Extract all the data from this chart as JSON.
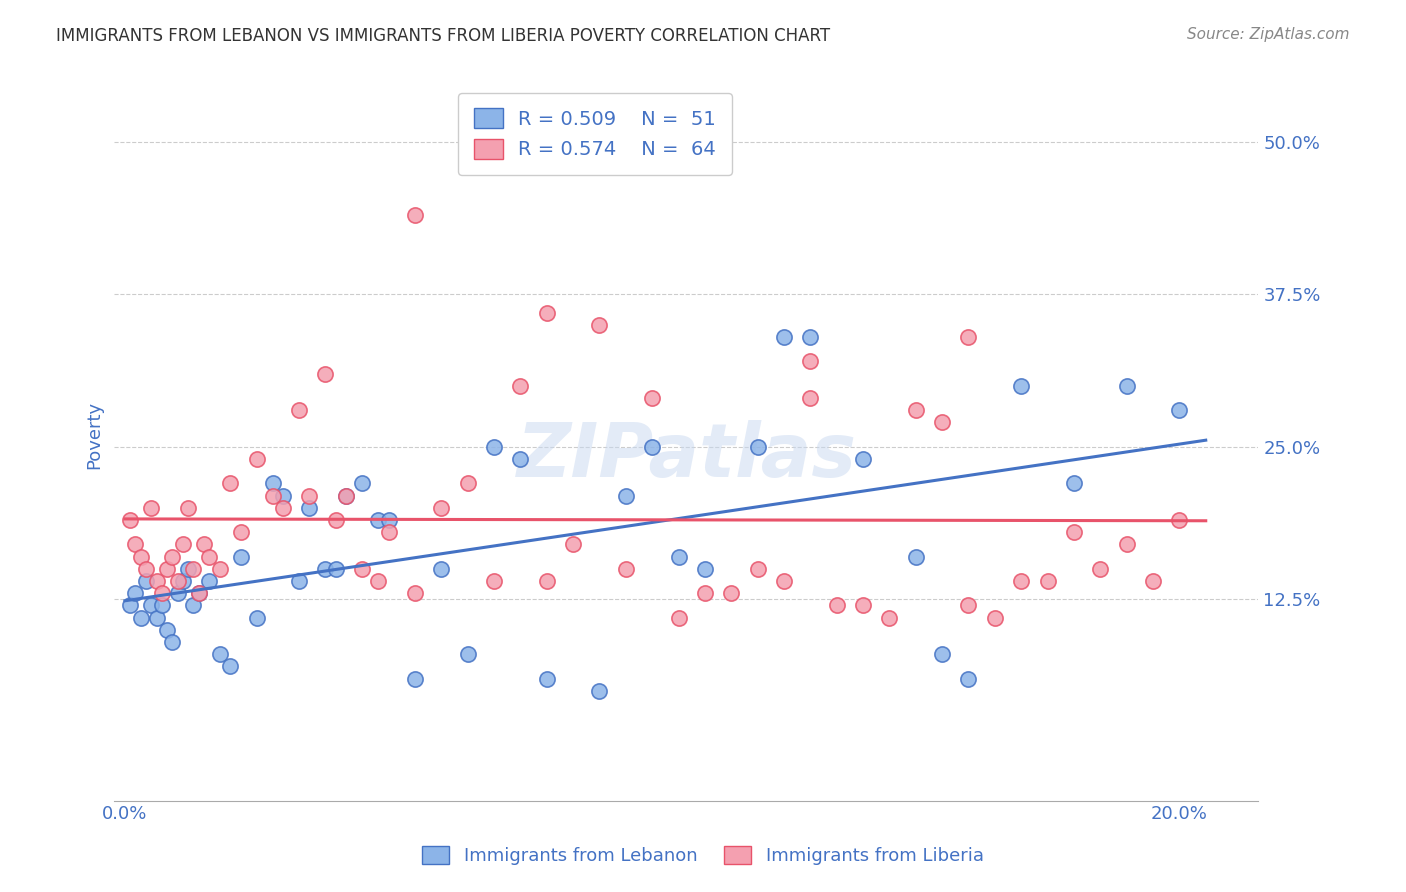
{
  "title": "IMMIGRANTS FROM LEBANON VS IMMIGRANTS FROM LIBERIA POVERTY CORRELATION CHART",
  "source": "Source: ZipAtlas.com",
  "ylabel": "Poverty",
  "xlim": [
    -0.002,
    0.215
  ],
  "ylim": [
    -0.04,
    0.56
  ],
  "legend_r1": "R = 0.509",
  "legend_n1": "N =  51",
  "legend_r2": "R = 0.574",
  "legend_n2": "N =  64",
  "color_lebanon": "#8cb4e8",
  "color_liberia": "#f4a0b0",
  "color_lebanon_line": "#4472c4",
  "color_liberia_line": "#e8536a",
  "color_axis_labels": "#4472c4",
  "watermark": "ZIPatlas",
  "watermark_color": "#c8d8f0",
  "lebanon_x": [
    0.001,
    0.002,
    0.003,
    0.004,
    0.005,
    0.006,
    0.007,
    0.008,
    0.009,
    0.01,
    0.011,
    0.012,
    0.013,
    0.014,
    0.016,
    0.018,
    0.02,
    0.022,
    0.025,
    0.028,
    0.03,
    0.033,
    0.035,
    0.038,
    0.04,
    0.042,
    0.045,
    0.048,
    0.05,
    0.055,
    0.06,
    0.065,
    0.07,
    0.075,
    0.08,
    0.09,
    0.095,
    0.1,
    0.105,
    0.11,
    0.12,
    0.125,
    0.13,
    0.14,
    0.15,
    0.155,
    0.16,
    0.17,
    0.18,
    0.19,
    0.2
  ],
  "lebanon_y": [
    0.12,
    0.13,
    0.11,
    0.14,
    0.12,
    0.11,
    0.12,
    0.1,
    0.09,
    0.13,
    0.14,
    0.15,
    0.12,
    0.13,
    0.14,
    0.08,
    0.07,
    0.16,
    0.11,
    0.22,
    0.21,
    0.14,
    0.2,
    0.15,
    0.15,
    0.21,
    0.22,
    0.19,
    0.19,
    0.06,
    0.15,
    0.08,
    0.25,
    0.24,
    0.06,
    0.05,
    0.21,
    0.25,
    0.16,
    0.15,
    0.25,
    0.34,
    0.34,
    0.24,
    0.16,
    0.08,
    0.06,
    0.3,
    0.22,
    0.3,
    0.28
  ],
  "liberia_x": [
    0.001,
    0.002,
    0.003,
    0.004,
    0.005,
    0.006,
    0.007,
    0.008,
    0.009,
    0.01,
    0.011,
    0.012,
    0.013,
    0.014,
    0.015,
    0.016,
    0.018,
    0.02,
    0.022,
    0.025,
    0.028,
    0.03,
    0.033,
    0.035,
    0.038,
    0.04,
    0.042,
    0.045,
    0.048,
    0.05,
    0.055,
    0.06,
    0.065,
    0.07,
    0.075,
    0.08,
    0.085,
    0.09,
    0.095,
    0.1,
    0.105,
    0.11,
    0.115,
    0.12,
    0.125,
    0.13,
    0.135,
    0.14,
    0.145,
    0.15,
    0.155,
    0.16,
    0.165,
    0.17,
    0.175,
    0.18,
    0.185,
    0.19,
    0.195,
    0.2,
    0.13,
    0.08,
    0.055,
    0.16
  ],
  "liberia_y": [
    0.19,
    0.17,
    0.16,
    0.15,
    0.2,
    0.14,
    0.13,
    0.15,
    0.16,
    0.14,
    0.17,
    0.2,
    0.15,
    0.13,
    0.17,
    0.16,
    0.15,
    0.22,
    0.18,
    0.24,
    0.21,
    0.2,
    0.28,
    0.21,
    0.31,
    0.19,
    0.21,
    0.15,
    0.14,
    0.18,
    0.13,
    0.2,
    0.22,
    0.14,
    0.3,
    0.14,
    0.17,
    0.35,
    0.15,
    0.29,
    0.11,
    0.13,
    0.13,
    0.15,
    0.14,
    0.29,
    0.12,
    0.12,
    0.11,
    0.28,
    0.27,
    0.12,
    0.11,
    0.14,
    0.14,
    0.18,
    0.15,
    0.17,
    0.14,
    0.19,
    0.32,
    0.36,
    0.44,
    0.34
  ]
}
